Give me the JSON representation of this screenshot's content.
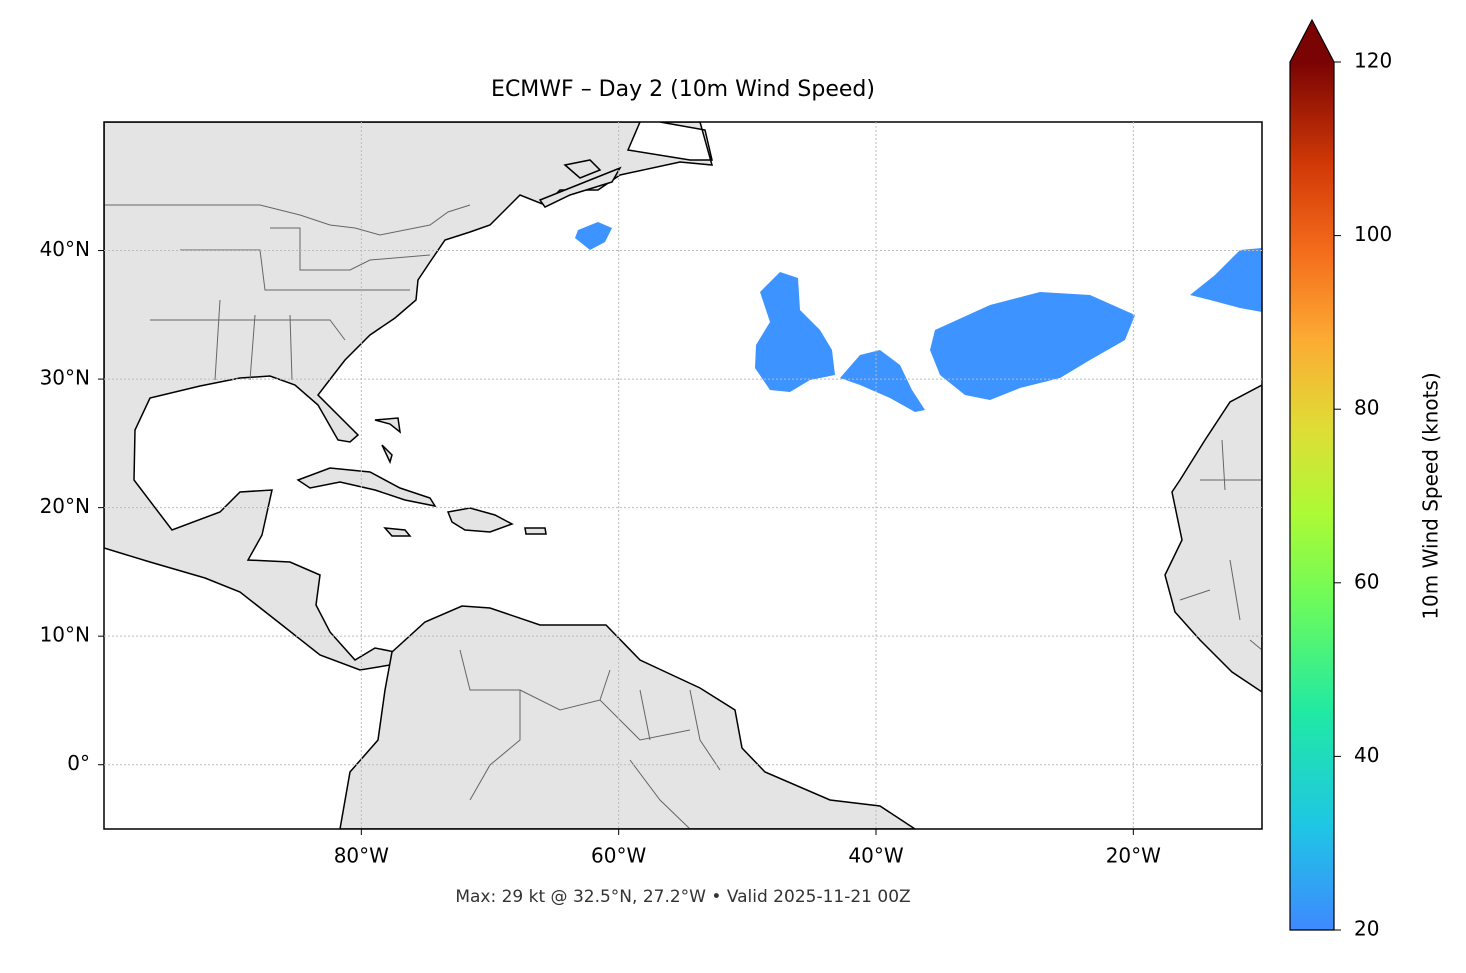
{
  "map": {
    "title": "ECMWF – Day 2 (10m Wind Speed)",
    "lonlim": [
      -100,
      -10
    ],
    "latlim": [
      -5,
      50
    ],
    "lonticks": [
      {
        "value": -80,
        "label": "80°W"
      },
      {
        "value": -60,
        "label": "60°W"
      },
      {
        "value": -40,
        "label": "40°W"
      },
      {
        "value": -20,
        "label": "20°W"
      }
    ],
    "latticks": [
      {
        "value": 0,
        "label": "0°"
      },
      {
        "value": 10,
        "label": "10°N"
      },
      {
        "value": 20,
        "label": "20°N"
      },
      {
        "value": 30,
        "label": "30°N"
      },
      {
        "value": 40,
        "label": "40°N"
      }
    ],
    "footer": "Max: 29 kt @ 32.5°N, 27.2°W • Valid 2025-11-21 00Z",
    "colorbar": {
      "label": "10m Wind Speed (knots)",
      "lim": [
        20,
        120
      ],
      "ticks": [
        20,
        40,
        60,
        80,
        100,
        120
      ]
    }
  }
}
